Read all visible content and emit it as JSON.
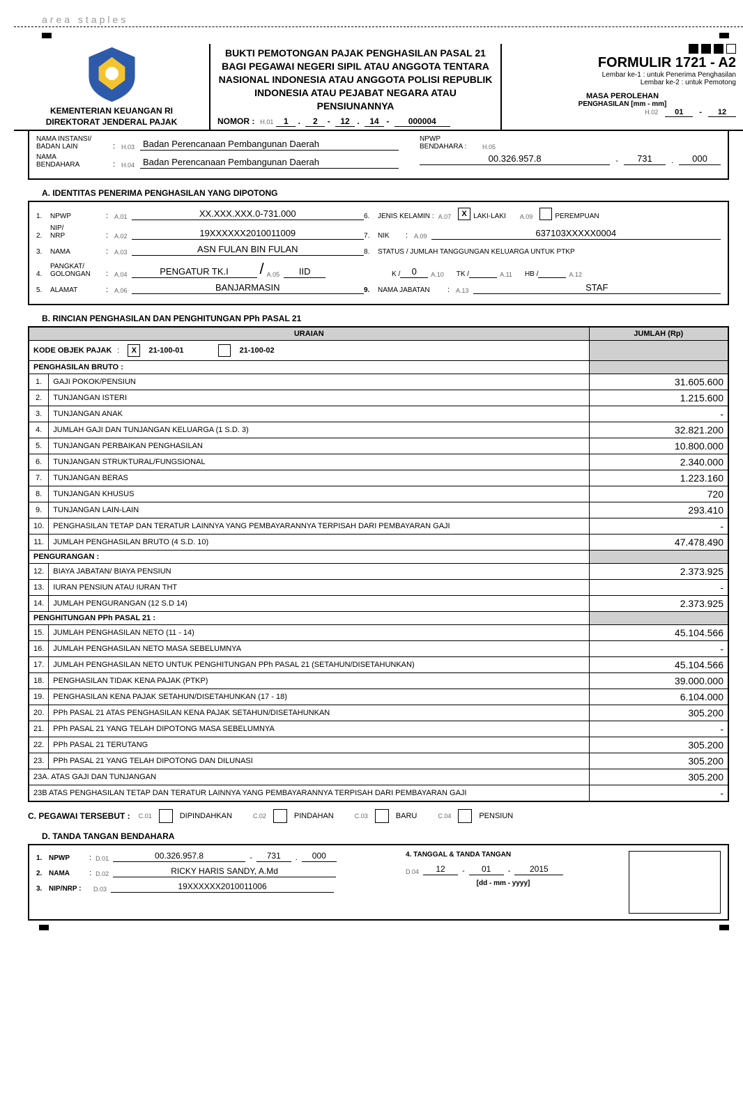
{
  "staples_label": "area staples",
  "header": {
    "kementerian": "KEMENTERIAN KEUANGAN RI",
    "direktorat": "DIREKTORAT JENDERAL PAJAK",
    "title": "BUKTI PEMOTONGAN PAJAK PENGHASILAN PASAL 21 BAGI PEGAWAI NEGERI SIPIL ATAU ANGGOTA TENTARA NASIONAL INDONESIA ATAU ANGGOTA POLISI REPUBLIK INDONESIA ATAU PEJABAT NEGARA ATAU PENSIUNANNYA",
    "nomor_label": "NOMOR :",
    "nomor_code": "H.01",
    "nomor": {
      "p1": "1",
      "p2": "2",
      "p3": "12",
      "p4": "14",
      "p5": "000004"
    },
    "formulir": "FORMULIR 1721 - A2",
    "lembar1": "Lembar ke-1 : untuk Penerima Penghasilan",
    "lembar2": "Lembar ke-2 : untuk Pemotong",
    "masa_title": "MASA PEROLEHAN",
    "masa_sub": "PENGHASILAN [mm - mm]",
    "masa_code": "H.02",
    "masa_from": "01",
    "masa_to": "12"
  },
  "instansi": {
    "nama_instansi_label": "NAMA INSTANSI/\nBADAN LAIN",
    "code_h03": "H.03",
    "nama_instansi": "Badan Perencanaan Pembangunan Daerah",
    "nama_bendahara_label_left": "NAMA\nBENDAHARA",
    "code_h04": "H.04",
    "nama_bendahara_left": "Badan Perencanaan Pembangunan Daerah",
    "npwp_bendahara_label": "NPWP\nBENDAHARA :",
    "code_h05": "H.05",
    "npwp_seg1": "00.326.957.8",
    "npwp_seg2": "731",
    "npwp_seg3": "000"
  },
  "sec_a_title": "A. IDENTITAS PENERIMA PENGHASILAN YANG DIPOTONG",
  "a": {
    "f1": {
      "num": "1.",
      "label": "NPWP",
      "code": "A.01",
      "value": "XX.XXX.XXX.0-731.000"
    },
    "f2": {
      "num": "2.",
      "label": "NIP/\nNRP",
      "code": "A.02",
      "value": "19XXXXXX2010011009"
    },
    "f3": {
      "num": "3.",
      "label": "NAMA",
      "code": "A.03",
      "value": "ASN FULAN BIN FULAN"
    },
    "f4": {
      "num": "4.",
      "label": "PANGKAT/\nGOLONGAN",
      "code": "A.04",
      "value": "PENGATUR TK.I",
      "code2": "A.05",
      "value2": "IID"
    },
    "f5": {
      "num": "5.",
      "label": "ALAMAT",
      "code": "A.06",
      "value": "BANJARMASIN"
    },
    "f6": {
      "num": "6.",
      "label": "JENIS KELAMIN :",
      "code1": "A.07",
      "opt1": "LAKI-LAKI",
      "code2": "A.09",
      "opt2": "PEREMPUAN",
      "checked": "X"
    },
    "f7": {
      "num": "7.",
      "label": "NIK",
      "code": "A.09",
      "value": "637103XXXXX0004"
    },
    "f8": {
      "num": "8.",
      "label": "STATUS / JUMLAH TANGGUNGAN KELUARGA UNTUK PTKP"
    },
    "ptkp": {
      "k": "K /",
      "k_val": "0",
      "k_code": "A.10",
      "tk": "TK /",
      "tk_code": "A.11",
      "hb": "HB /",
      "hb_code": "A.12"
    },
    "f9": {
      "num": "9.",
      "label": "NAMA JABATAN",
      "code": "A.13",
      "value": "STAF"
    }
  },
  "sec_b_title": "B. RINCIAN  PENGHASILAN DAN PENGHITUNGAN PPh PASAL 21",
  "b_headers": {
    "uraian": "URAIAN",
    "jumlah": "JUMLAH (Rp)"
  },
  "kode_objek": {
    "label": "KODE OBJEK PAJAK",
    "opt1": "21-100-01",
    "opt2": "21-100-02",
    "checked": "X"
  },
  "b_groups": {
    "bruto": "PENGHASILAN BRUTO :",
    "pengurangan": "PENGURANGAN :",
    "penghitungan": "PENGHITUNGAN PPh PASAL 21 :"
  },
  "b_rows": [
    {
      "n": "1.",
      "t": "GAJI POKOK/PENSIUN",
      "v": "31.605.600"
    },
    {
      "n": "2.",
      "t": "TUNJANGAN ISTERI",
      "v": "1.215.600"
    },
    {
      "n": "3.",
      "t": "TUNJANGAN ANAK",
      "v": "-"
    },
    {
      "n": "4.",
      "t": "JUMLAH GAJI DAN TUNJANGAN KELUARGA (1 S.D. 3)",
      "v": "32.821.200"
    },
    {
      "n": "5.",
      "t": "TUNJANGAN PERBAIKAN PENGHASILAN",
      "v": "10.800.000"
    },
    {
      "n": "6.",
      "t": "TUNJANGAN STRUKTURAL/FUNGSIONAL",
      "v": "2.340.000"
    },
    {
      "n": "7.",
      "t": "TUNJANGAN BERAS",
      "v": "1.223.160"
    },
    {
      "n": "8.",
      "t": "TUNJANGAN KHUSUS",
      "v": "720"
    },
    {
      "n": "9.",
      "t": "TUNJANGAN LAIN-LAIN",
      "v": "293.410"
    },
    {
      "n": "10.",
      "t": "PENGHASILAN TETAP DAN TERATUR LAINNYA YANG PEMBAYARANNYA TERPISAH DARI PEMBAYARAN GAJI",
      "v": "-"
    },
    {
      "n": "11.",
      "t": "JUMLAH PENGHASILAN BRUTO (4 S.D. 10)",
      "v": "47.478.490"
    },
    {
      "n": "12.",
      "t": "BIAYA JABATAN/ BIAYA PENSIUN",
      "v": "2.373.925"
    },
    {
      "n": "13.",
      "t": "IURAN PENSIUN ATAU IURAN THT",
      "v": "-"
    },
    {
      "n": "14.",
      "t": "JUMLAH PENGURANGAN (12 S.D 14)",
      "v": "2.373.925"
    },
    {
      "n": "15.",
      "t": "JUMLAH PENGHASILAN NETO (11 - 14)",
      "v": "45.104.566"
    },
    {
      "n": "16.",
      "t": "JUMLAH PENGHASILAN NETO MASA SEBELUMNYA",
      "v": "-"
    },
    {
      "n": "17.",
      "t": "JUMLAH PENGHASILAN NETO UNTUK PENGHITUNGAN PPh PASAL 21 (SETAHUN/DISETAHUNKAN)",
      "v": "45.104.566"
    },
    {
      "n": "18.",
      "t": "PENGHASILAN TIDAK KENA PAJAK (PTKP)",
      "v": "39.000.000"
    },
    {
      "n": "19.",
      "t": "PENGHASILAN KENA PAJAK SETAHUN/DISETAHUNKAN (17 - 18)",
      "v": "6.104.000"
    },
    {
      "n": "20.",
      "t": "PPh PASAL 21 ATAS PENGHASILAN KENA PAJAK SETAHUN/DISETAHUNKAN",
      "v": "305.200"
    },
    {
      "n": "21.",
      "t": "PPh PASAL 21 YANG TELAH DIPOTONG MASA SEBELUMNYA",
      "v": "-"
    },
    {
      "n": "22.",
      "t": "PPh PASAL 21 TERUTANG",
      "v": "305.200"
    },
    {
      "n": "23.",
      "t": "PPh PASAL 21 YANG TELAH DIPOTONG DAN DILUNASI",
      "v": "305.200"
    },
    {
      "n": "",
      "t": "23A.   ATAS GAJI DAN TUNJANGAN",
      "v": "305.200"
    },
    {
      "n": "",
      "t": "23B   ATAS PENGHASILAN TETAP DAN TERATUR LAINNYA YANG PEMBAYARANNYA TERPISAH DARI PEMBAYARAN GAJI",
      "v": "-"
    }
  ],
  "sec_c": {
    "title": "C. PEGAWAI TERSEBUT :",
    "opts": [
      {
        "code": "C.01",
        "label": "DIPINDAHKAN"
      },
      {
        "code": "C.02",
        "label": "PINDAHAN"
      },
      {
        "code": "C.03",
        "label": "BARU"
      },
      {
        "code": "C.04",
        "label": "PENSIUN"
      }
    ]
  },
  "sec_d_title": "D. TANDA TANGAN BENDAHARA",
  "d": {
    "r1": {
      "num": "1.",
      "label": "NPWP",
      "code": "D.01",
      "v1": "00.326.957.8",
      "v2": "731",
      "v3": "000"
    },
    "r2": {
      "num": "2.",
      "label": "NAMA",
      "code": "D.02",
      "value": "RICKY HARIS SANDY, A.Md"
    },
    "r3": {
      "num": "3.",
      "label": "NIP/NRP :",
      "code": "D.03",
      "value": "19XXXXXX2010011006"
    },
    "r4": {
      "label": "4. TANGGAL & TANDA TANGAN",
      "code": "D.04",
      "dd": "12",
      "mm": "01",
      "yyyy": "2015",
      "fmt": "[dd - mm - yyyy]"
    }
  }
}
